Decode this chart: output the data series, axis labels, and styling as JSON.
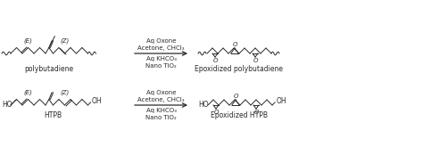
{
  "bg_color": "#ffffff",
  "line_color": "#2a2a2a",
  "reaction_conditions_1": "Aq Oxone\nAcetone, CHCl₃",
  "reaction_conditions_2": "Aq KHCO₃\nNano TiO₂",
  "label_pb": "polybutadiene",
  "label_epb": "Epoxidized polybutadiene",
  "label_htpb": "HTPB",
  "label_ehtpb": "Epoxidized HTPB",
  "label_E": "(E)",
  "label_Z": "(Z)",
  "figsize": [
    4.74,
    1.65
  ],
  "dpi": 100
}
